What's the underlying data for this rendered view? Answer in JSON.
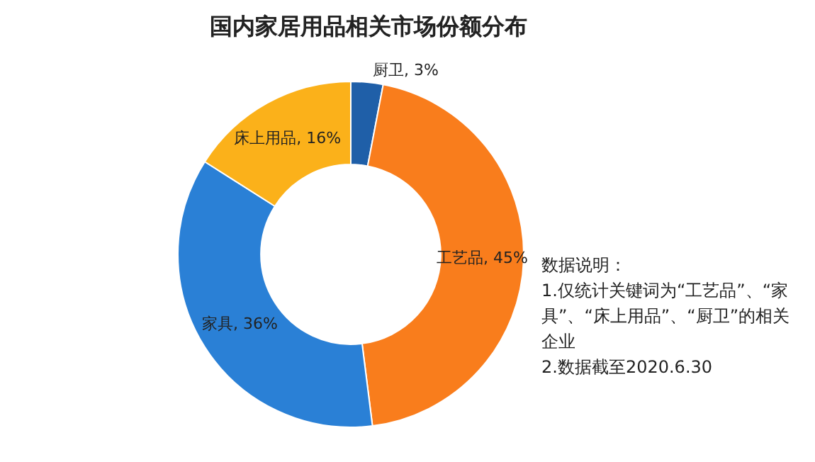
{
  "chart_data": {
    "type": "donut",
    "title": "国内家居用品相关市场份额分布",
    "categories": [
      "厨卫",
      "工艺品",
      "家具",
      "床上用品"
    ],
    "values": [
      3,
      45,
      36,
      16
    ],
    "value_labels": [
      "3%",
      "45%",
      "36%",
      "16%"
    ],
    "colors": [
      "#1f5fa8",
      "#f97d1c",
      "#2a80d6",
      "#fbb11a"
    ],
    "legend": false,
    "annotations": [
      "数据说明：",
      "1.仅统计关键词为“工艺品”、“家具”、“床上用品”、“厨卫”的相关企业",
      "2.数据截至2020.6.30"
    ]
  }
}
